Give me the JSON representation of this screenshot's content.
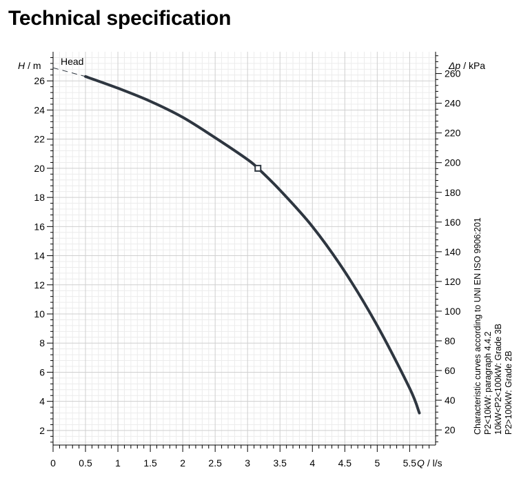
{
  "page": {
    "title": "Technical specification"
  },
  "chart_data": {
    "type": "line",
    "title": "Head",
    "xlabel": {
      "symbol": "Q",
      "unit": "/ l/s"
    },
    "ylabel": {
      "symbol": "H",
      "unit": "/ m"
    },
    "y2label": {
      "symbol": "Δp",
      "unit": "/ kPa"
    },
    "xlim": [
      0,
      5.9
    ],
    "ylim": [
      1,
      28
    ],
    "y2lim": [
      9.81,
      274.68
    ],
    "x_ticks": [
      "0",
      "0.5",
      "1",
      "1.5",
      "2",
      "2.5",
      "3",
      "3.5",
      "4",
      "4.5",
      "5",
      "5.5"
    ],
    "x_tick_values": [
      0,
      0.5,
      1,
      1.5,
      2,
      2.5,
      3,
      3.5,
      4,
      4.5,
      5,
      5.5
    ],
    "y_ticks": [
      "2",
      "4",
      "6",
      "8",
      "10",
      "12",
      "14",
      "16",
      "18",
      "20",
      "22",
      "24",
      "26"
    ],
    "y_tick_values": [
      2,
      4,
      6,
      8,
      10,
      12,
      14,
      16,
      18,
      20,
      22,
      24,
      26
    ],
    "y2_ticks": [
      "20",
      "40",
      "60",
      "80",
      "100",
      "120",
      "140",
      "160",
      "180",
      "200",
      "220",
      "240",
      "260"
    ],
    "y2_tick_values": [
      20,
      40,
      60,
      80,
      100,
      120,
      140,
      160,
      180,
      200,
      220,
      240,
      260
    ],
    "grid": true,
    "series": [
      {
        "name": "Head",
        "x": [
          0.5,
          1.0,
          1.5,
          2.0,
          2.5,
          3.0,
          3.16,
          3.5,
          4.0,
          4.5,
          5.0,
          5.5,
          5.65
        ],
        "y": [
          26.3,
          25.5,
          24.6,
          23.5,
          22.1,
          20.6,
          20.0,
          18.5,
          16.0,
          12.9,
          9.2,
          4.9,
          3.2
        ]
      }
    ],
    "extrapolation": {
      "x": [
        0.0,
        0.5
      ],
      "y": [
        26.9,
        26.3
      ],
      "style": "dashed"
    },
    "marker": {
      "x": 3.16,
      "y": 20.0,
      "shape": "square"
    },
    "annotation_lines": [
      "Characteristic curves according to UNI EN ISO 9906:201",
      "P2<10kW:  paragraph 4.4.2",
      "10kW<P2<100kW: Grade 3B",
      "P2>100kW: Grade 2B"
    ]
  }
}
